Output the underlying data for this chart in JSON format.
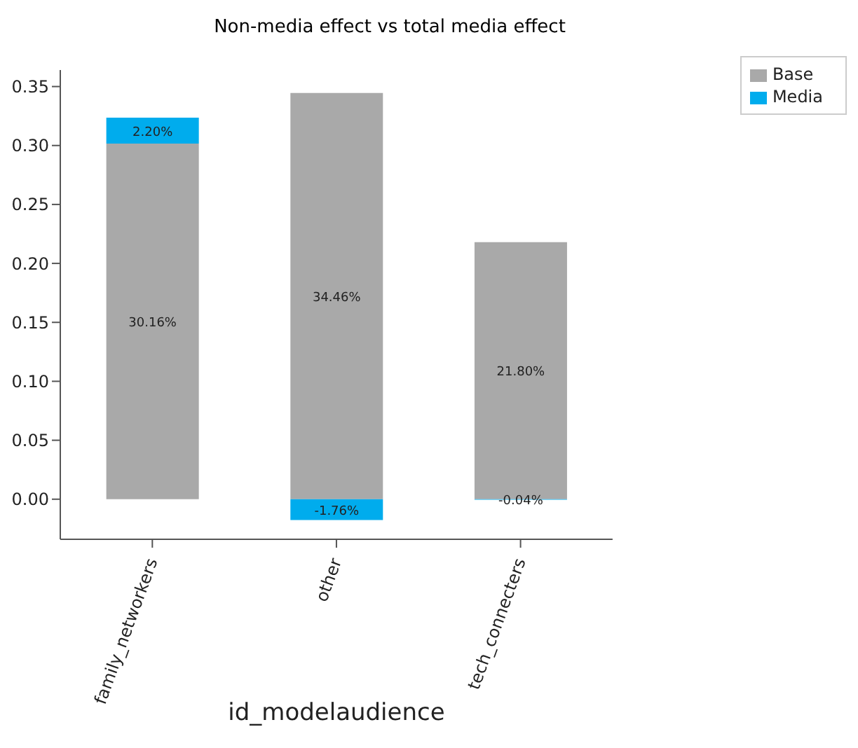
{
  "chart_data": {
    "type": "bar",
    "title": "Non-media effect vs total media effect",
    "xlabel": "id_modelaudience",
    "categories": [
      "family_networkers",
      "other",
      "tech_connecters"
    ],
    "series": [
      {
        "name": "Base",
        "color": "#a9a9a9",
        "values": [
          0.3016,
          0.3446,
          0.218
        ],
        "value_labels": [
          "30.16%",
          "34.46%",
          "21.80%"
        ]
      },
      {
        "name": "Media",
        "color": "#00aced",
        "values": [
          0.022,
          -0.0176,
          -0.0004
        ],
        "value_labels": [
          "2.20%",
          "-1.76%",
          "-0.04%"
        ]
      }
    ],
    "stacked": true,
    "ylim": [
      -0.034,
      0.364
    ],
    "yticks": [
      {
        "value": 0,
        "label": "0.00"
      },
      {
        "value": 0.05,
        "label": "0.05"
      },
      {
        "value": 0.1,
        "label": "0.10"
      },
      {
        "value": 0.15,
        "label": "0.15"
      },
      {
        "value": 0.2,
        "label": "0.20"
      },
      {
        "value": 0.25,
        "label": "0.25"
      },
      {
        "value": 0.3,
        "label": "0.30"
      },
      {
        "value": 0.35,
        "label": "0.35"
      }
    ],
    "grid": false,
    "legend": "top right"
  }
}
